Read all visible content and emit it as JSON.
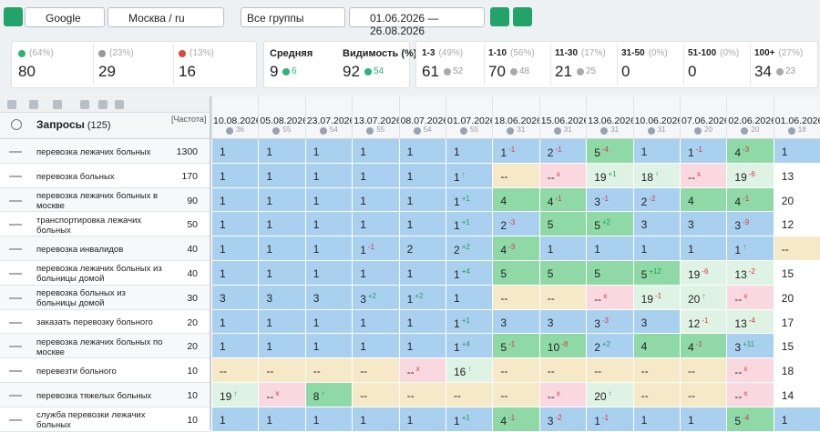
{
  "toolbar": {
    "engine": "Google",
    "region": "Москва / ru",
    "group": "Все группы",
    "date_range": "01.06.2026 — 26.08.2026"
  },
  "summary": {
    "trend_cards": [
      {
        "icon": "up",
        "pct": "(64%)",
        "value": 80
      },
      {
        "icon": "same",
        "pct": "(23%)",
        "value": 29
      },
      {
        "icon": "down",
        "pct": "(13%)",
        "value": 16
      }
    ],
    "metric_cards": [
      {
        "label": "Средняя",
        "value": 9,
        "change": 6,
        "trend": "up"
      },
      {
        "label": "Видимость (%)",
        "value": 92,
        "change": 54,
        "trend": "up"
      }
    ],
    "range_cards": [
      {
        "label": "1-3",
        "pct": "(49%)",
        "value": 61,
        "change": 52
      },
      {
        "label": "1-10",
        "pct": "(56%)",
        "value": 70,
        "change": 48
      },
      {
        "label": "11-30",
        "pct": "(17%)",
        "value": 21,
        "change": 25
      },
      {
        "label": "31-50",
        "pct": "(0%)",
        "value": 0
      },
      {
        "label": "51-100",
        "pct": "(0%)",
        "value": 0
      },
      {
        "label": "100+",
        "pct": "(27%)",
        "value": 34,
        "change": 23
      }
    ]
  },
  "table": {
    "query_header": "Запросы",
    "query_count": "(125)",
    "freq_header": "[Частота]",
    "dates": [
      {
        "date": "10.08.2026",
        "count": 36
      },
      {
        "date": "05.08.2026",
        "count": 55
      },
      {
        "date": "23.07.2026",
        "count": 54
      },
      {
        "date": "13.07.2026",
        "count": 55
      },
      {
        "date": "08.07.2026",
        "count": 54
      },
      {
        "date": "01.07.2026",
        "count": 55
      },
      {
        "date": "18.06.2026",
        "count": 31
      },
      {
        "date": "15.06.2026",
        "count": 31
      },
      {
        "date": "13.06.2026",
        "count": 31
      },
      {
        "date": "10.06.2026",
        "count": 31
      },
      {
        "date": "07.06.2026",
        "count": 20
      },
      {
        "date": "02.06.2026",
        "count": 20
      },
      {
        "date": "01.06.2026",
        "count": 18
      }
    ],
    "rows": [
      {
        "query": "перевозка лежачих больных",
        "frequency": 1300,
        "cells": [
          {
            "text": 1
          },
          {
            "text": 1
          },
          {
            "text": 1
          },
          {
            "text": 1
          },
          {
            "text": 1
          },
          {
            "text": 1
          },
          {
            "text": 1,
            "delta": "-1"
          },
          {
            "text": 2,
            "delta": "-1"
          },
          {
            "text": 5,
            "delta": "-4"
          },
          {
            "text": 1
          },
          {
            "text": 1,
            "delta": "-1"
          },
          {
            "text": 4,
            "delta": "-3"
          },
          {
            "text": 1
          }
        ]
      },
      {
        "query": "перевозка больных",
        "frequency": 170,
        "cells": [
          {
            "text": 1
          },
          {
            "text": 1
          },
          {
            "text": 1
          },
          {
            "text": 1
          },
          {
            "text": 1
          },
          {
            "text": 1,
            "delta": "↑"
          },
          {
            "text": "--"
          },
          {
            "text": "--",
            "delta": "x"
          },
          {
            "text": 19,
            "delta": "+1"
          },
          {
            "text": 18,
            "delta": "↑"
          },
          {
            "text": "--",
            "delta": "x"
          },
          {
            "text": 19,
            "delta": "-6"
          },
          {
            "text": 13
          }
        ]
      },
      {
        "query": "перевозка лежачих больных в москве",
        "frequency": 90,
        "cells": [
          {
            "text": 1
          },
          {
            "text": 1
          },
          {
            "text": 1
          },
          {
            "text": 1
          },
          {
            "text": 1
          },
          {
            "text": 1,
            "delta": "+1"
          },
          {
            "text": 4
          },
          {
            "text": 4,
            "delta": "-1"
          },
          {
            "text": 3,
            "delta": "-1"
          },
          {
            "text": 2,
            "delta": "-2"
          },
          {
            "text": 4
          },
          {
            "text": 4,
            "delta": "-1"
          },
          {
            "text": 20
          }
        ]
      },
      {
        "query": "транспортировка лежачих больных",
        "frequency": 50,
        "cells": [
          {
            "text": 1
          },
          {
            "text": 1
          },
          {
            "text": 1
          },
          {
            "text": 1
          },
          {
            "text": 1
          },
          {
            "text": 1,
            "delta": "+1"
          },
          {
            "text": 2,
            "delta": "-3"
          },
          {
            "text": 5
          },
          {
            "text": 5,
            "delta": "+2"
          },
          {
            "text": 3
          },
          {
            "text": 3
          },
          {
            "text": 3,
            "delta": "-9"
          },
          {
            "text": 12
          }
        ]
      },
      {
        "query": "перевозка инвалидов",
        "frequency": 40,
        "cells": [
          {
            "text": 1
          },
          {
            "text": 1
          },
          {
            "text": 1
          },
          {
            "text": 1,
            "delta": "-1"
          },
          {
            "text": 2
          },
          {
            "text": 2,
            "delta": "+2"
          },
          {
            "text": 4,
            "delta": "-3"
          },
          {
            "text": 1
          },
          {
            "text": 1
          },
          {
            "text": 1
          },
          {
            "text": 1
          },
          {
            "text": 1,
            "delta": "↑"
          },
          {
            "text": "--"
          }
        ]
      },
      {
        "query": "перевозка лежачих больных из больницы домой",
        "frequency": 40,
        "cells": [
          {
            "text": 1
          },
          {
            "text": 1
          },
          {
            "text": 1
          },
          {
            "text": 1
          },
          {
            "text": 1
          },
          {
            "text": 1,
            "delta": "+4"
          },
          {
            "text": 5
          },
          {
            "text": 5
          },
          {
            "text": 5
          },
          {
            "text": 5,
            "delta": "+12"
          },
          {
            "text": 19,
            "delta": "-6"
          },
          {
            "text": 13,
            "delta": "-2"
          },
          {
            "text": 15
          }
        ]
      },
      {
        "query": "перевозка больных из больницы домой",
        "frequency": 30,
        "cells": [
          {
            "text": 3
          },
          {
            "text": 3
          },
          {
            "text": 3
          },
          {
            "text": 3,
            "delta": "+2"
          },
          {
            "text": 1,
            "delta": "+2"
          },
          {
            "text": 1
          },
          {
            "text": "--"
          },
          {
            "text": "--"
          },
          {
            "text": "--",
            "delta": "x"
          },
          {
            "text": 19,
            "delta": "-1"
          },
          {
            "text": 20,
            "delta": "↑"
          },
          {
            "text": "--",
            "delta": "x"
          },
          {
            "text": 20
          }
        ]
      },
      {
        "query": "заказать перевозку больного",
        "frequency": 20,
        "cells": [
          {
            "text": 1
          },
          {
            "text": 1
          },
          {
            "text": 1
          },
          {
            "text": 1
          },
          {
            "text": 1
          },
          {
            "text": 1,
            "delta": "+1"
          },
          {
            "text": 3
          },
          {
            "text": 3
          },
          {
            "text": 3,
            "delta": "-3"
          },
          {
            "text": 3
          },
          {
            "text": 12,
            "delta": "-1"
          },
          {
            "text": 13,
            "delta": "-4"
          },
          {
            "text": 17
          }
        ]
      },
      {
        "query": "перевозка лежачих больных по москве",
        "frequency": 20,
        "cells": [
          {
            "text": 1
          },
          {
            "text": 1
          },
          {
            "text": 1
          },
          {
            "text": 1
          },
          {
            "text": 1
          },
          {
            "text": 1,
            "delta": "+4"
          },
          {
            "text": 5,
            "delta": "-1"
          },
          {
            "text": 10,
            "delta": "-8"
          },
          {
            "text": 2,
            "delta": "+2"
          },
          {
            "text": 4
          },
          {
            "text": 4,
            "delta": "-1"
          },
          {
            "text": 3,
            "delta": "+11"
          },
          {
            "text": 15
          }
        ]
      },
      {
        "query": "перевезти больного",
        "frequency": 10,
        "cells": [
          {
            "text": "--"
          },
          {
            "text": "--"
          },
          {
            "text": "--"
          },
          {
            "text": "--"
          },
          {
            "text": "--",
            "delta": "x"
          },
          {
            "text": 16,
            "delta": "↑"
          },
          {
            "text": "--"
          },
          {
            "text": "--"
          },
          {
            "text": "--"
          },
          {
            "text": "--"
          },
          {
            "text": "--"
          },
          {
            "text": "--",
            "delta": "x"
          },
          {
            "text": 18
          }
        ]
      },
      {
        "query": "перевозка тяжелых больных",
        "frequency": 10,
        "cells": [
          {
            "text": 19,
            "delta": "↑"
          },
          {
            "text": "--",
            "delta": "x"
          },
          {
            "text": 8,
            "delta": "↑"
          },
          {
            "text": "--"
          },
          {
            "text": "--"
          },
          {
            "text": "--"
          },
          {
            "text": "--"
          },
          {
            "text": "--",
            "delta": "x"
          },
          {
            "text": 20,
            "delta": "↑"
          },
          {
            "text": "--"
          },
          {
            "text": "--"
          },
          {
            "text": "--",
            "delta": "x"
          },
          {
            "text": 14
          }
        ]
      },
      {
        "query": "служба перевозки лежачих больных",
        "frequency": 10,
        "cells": [
          {
            "text": 1
          },
          {
            "text": 1
          },
          {
            "text": 1
          },
          {
            "text": 1
          },
          {
            "text": 1
          },
          {
            "text": 1,
            "delta": "+1"
          },
          {
            "text": 4,
            "delta": "-1"
          },
          {
            "text": 3,
            "delta": "-2"
          },
          {
            "text": 1,
            "delta": "-1"
          },
          {
            "text": 1
          },
          {
            "text": 1
          },
          {
            "text": 5,
            "delta": "-4"
          },
          {
            "text": 1
          }
        ]
      }
    ]
  }
}
